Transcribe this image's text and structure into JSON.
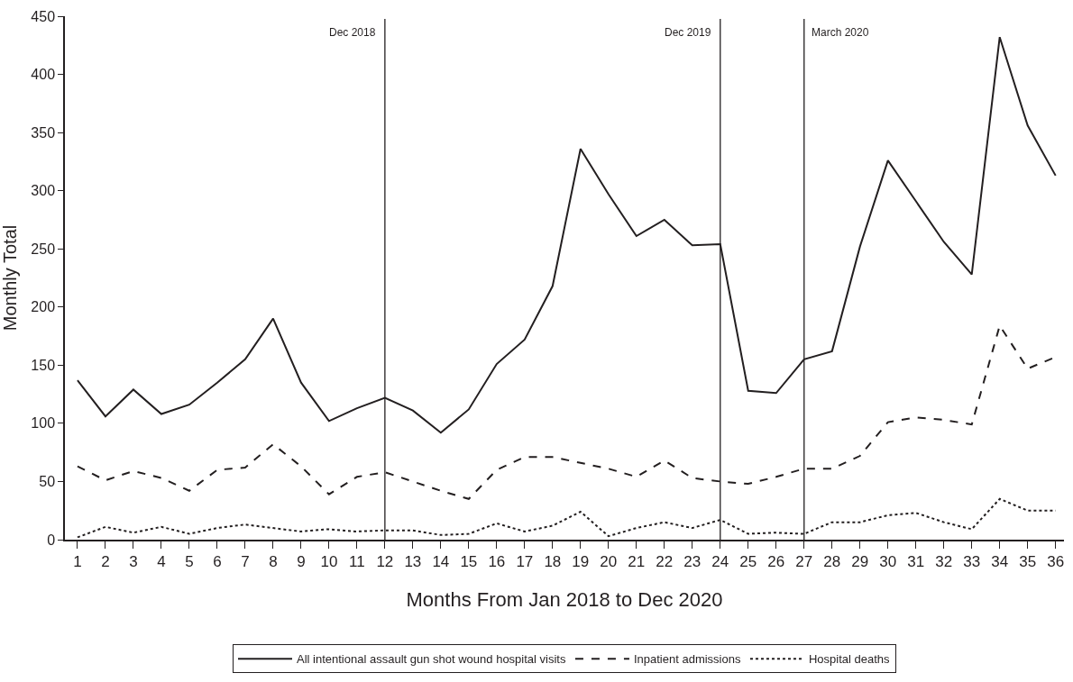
{
  "chart_data": {
    "type": "line",
    "xlabel": "Months From Jan 2018 to Dec 2020",
    "ylabel": "Monthly Total",
    "x": [
      1,
      2,
      3,
      4,
      5,
      6,
      7,
      8,
      9,
      10,
      11,
      12,
      13,
      14,
      15,
      16,
      17,
      18,
      19,
      20,
      21,
      22,
      23,
      24,
      25,
      26,
      27,
      28,
      29,
      30,
      31,
      32,
      33,
      34,
      35,
      36
    ],
    "series": [
      {
        "name": "All intentional assault gun shot wound hospital visits",
        "color": "#231f20",
        "line_style": "solid",
        "values": [
          137,
          106,
          129,
          108,
          116,
          135,
          155,
          190,
          135,
          102,
          113,
          122,
          111,
          92,
          112,
          151,
          172,
          218,
          336,
          297,
          261,
          275,
          253,
          254,
          128,
          126,
          155,
          162,
          252,
          326,
          291,
          256,
          228,
          432,
          356,
          313
        ]
      },
      {
        "name": "Inpatient admissions",
        "color": "#231f20",
        "line_style": "dashed",
        "values": [
          63,
          51,
          59,
          53,
          42,
          60,
          62,
          82,
          63,
          39,
          54,
          58,
          50,
          42,
          35,
          60,
          71,
          71,
          66,
          61,
          54,
          68,
          53,
          50,
          48,
          54,
          61,
          61,
          72,
          101,
          105,
          103,
          99,
          184,
          147,
          157
        ]
      },
      {
        "name": "Hospital deaths",
        "color": "#231f20",
        "line_style": "dotted",
        "values": [
          2,
          11,
          6,
          11,
          5,
          10,
          13,
          10,
          7,
          9,
          7,
          8,
          8,
          4,
          5,
          14,
          7,
          12,
          24,
          3,
          10,
          15,
          10,
          17,
          5,
          6,
          5,
          15,
          15,
          21,
          23,
          15,
          9,
          35,
          25,
          25
        ]
      }
    ],
    "xlim": [
      0.55,
      36.3
    ],
    "xticks": [
      1,
      2,
      3,
      4,
      5,
      6,
      7,
      8,
      9,
      10,
      11,
      12,
      13,
      14,
      15,
      16,
      17,
      18,
      19,
      20,
      21,
      22,
      23,
      24,
      25,
      26,
      27,
      28,
      29,
      30,
      31,
      32,
      33,
      34,
      35,
      36
    ],
    "ylim": [
      0,
      450
    ],
    "yticks": [
      0,
      50,
      100,
      150,
      200,
      250,
      300,
      350,
      400,
      450
    ],
    "ref_lines": [
      {
        "axis": "x",
        "value": 12,
        "label": "Dec 2018",
        "color": "#231f20"
      },
      {
        "axis": "x",
        "value": 24,
        "label": "Dec 2019",
        "color": "#231f20"
      },
      {
        "axis": "x",
        "value": 27,
        "label": "March 2020",
        "color": "#231f20"
      }
    ],
    "legend": "bottom",
    "marker": "none"
  }
}
